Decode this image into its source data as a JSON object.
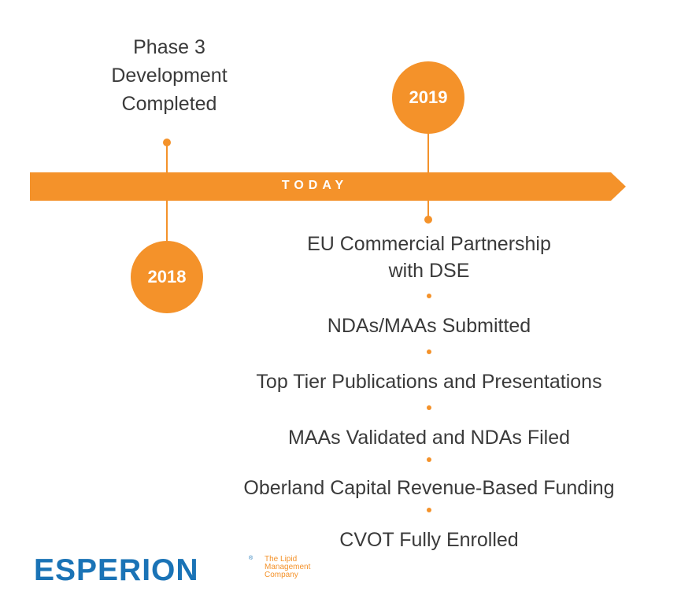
{
  "timeline": {
    "today_label": "TODAY",
    "accent_color": "#f4922a"
  },
  "milestones_2018": {
    "year": "2018",
    "items": [
      "Phase 3\nDevelopment\nCompleted"
    ]
  },
  "milestones_2019": {
    "year": "2019",
    "items": [
      "EU Commercial Partnership\nwith DSE",
      "NDAs/MAAs Submitted",
      "Top Tier Publications and Presentations",
      "MAAs Validated and NDAs Filed",
      "Oberland Capital Revenue-Based Funding",
      "CVOT Fully Enrolled"
    ]
  },
  "logo": {
    "wordmark": "ESPERION",
    "registered": "®",
    "tagline_1": "The Lipid",
    "tagline_2": "Management",
    "tagline_3": "Company",
    "brand_color": "#1a73b6"
  }
}
